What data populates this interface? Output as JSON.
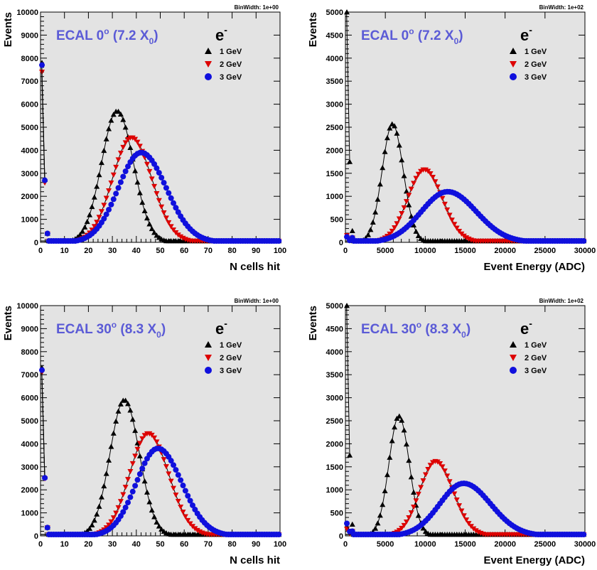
{
  "chart_data": [
    {
      "type": "line",
      "binwidth": "BinWidth: 1e+00",
      "title": {
        "pre": "ECAL 0",
        "sup": "o",
        "mid": " (7.2 X",
        "sub": "0",
        "post": ")"
      },
      "particle": {
        "base": "e",
        "sup": "-"
      },
      "xlabel": "N cells hit",
      "ylabel": "Events",
      "xlim": [
        0,
        100
      ],
      "ylim": [
        0,
        10000
      ],
      "xticks": [
        "0",
        "10",
        "20",
        "30",
        "40",
        "50",
        "60",
        "70",
        "80",
        "90",
        "100"
      ],
      "yticks": [
        "0",
        "1000",
        "2000",
        "3000",
        "4000",
        "5000",
        "6000",
        "7000",
        "8000",
        "9000",
        "10000"
      ],
      "legend_position": "top-right",
      "series": [
        {
          "name": "1 GeV",
          "color": "#000000",
          "marker": "triangle-up",
          "spike": 7800,
          "peak": 32,
          "height": 5700,
          "sigma_left": 6.5,
          "sigma_right": 6.8
        },
        {
          "name": "2 GeV",
          "color": "#dd0000",
          "marker": "triangle-down",
          "spike": 7400,
          "peak": 38,
          "height": 4550,
          "sigma_left": 8.0,
          "sigma_right": 8.5
        },
        {
          "name": "3 GeV",
          "color": "#1010dd",
          "marker": "circle",
          "spike": 7700,
          "peak": 42,
          "height": 3900,
          "sigma_left": 9.5,
          "sigma_right": 10.5
        }
      ]
    },
    {
      "type": "line",
      "binwidth": "BinWidth: 1e+02",
      "title": {
        "pre": "ECAL 0",
        "sup": "o",
        "mid": " (7.2 X",
        "sub": "0",
        "post": ")"
      },
      "particle": {
        "base": "e",
        "sup": "-"
      },
      "xlabel": "Event Energy (ADC)",
      "ylabel": "Events",
      "xlim": [
        0,
        30000
      ],
      "ylim": [
        0,
        5000
      ],
      "xticks": [
        "0",
        "5000",
        "10000",
        "15000",
        "20000",
        "25000",
        "30000"
      ],
      "yticks": [
        "0",
        "500",
        "1000",
        "1500",
        "2000",
        "2500",
        "3000",
        "3500",
        "4000",
        "4500",
        "5000"
      ],
      "legend_position": "top-right",
      "series": [
        {
          "name": "1 GeV",
          "color": "#000000",
          "marker": "triangle-up",
          "spike": 5000,
          "peak": 5900,
          "height": 2570,
          "sigma_left": 1300,
          "sigma_right": 1350
        },
        {
          "name": "2 GeV",
          "color": "#dd0000",
          "marker": "triangle-down",
          "spike": 150,
          "peak": 9900,
          "height": 1580,
          "sigma_left": 2100,
          "sigma_right": 2250
        },
        {
          "name": "3 GeV",
          "color": "#1010dd",
          "marker": "circle",
          "spike": 120,
          "peak": 12800,
          "height": 1100,
          "sigma_left": 3300,
          "sigma_right": 3600
        }
      ]
    },
    {
      "type": "line",
      "binwidth": "BinWidth: 1e+00",
      "title": {
        "pre": "ECAL 30",
        "sup": "o",
        "mid": " (8.3 X",
        "sub": "0",
        "post": ")"
      },
      "particle": {
        "base": "e",
        "sup": "-"
      },
      "xlabel": "N cells hit",
      "ylabel": "Events",
      "xlim": [
        0,
        100
      ],
      "ylim": [
        0,
        10000
      ],
      "xticks": [
        "0",
        "10",
        "20",
        "30",
        "40",
        "50",
        "60",
        "70",
        "80",
        "90",
        "100"
      ],
      "yticks": [
        "0",
        "1000",
        "2000",
        "3000",
        "4000",
        "5000",
        "6000",
        "7000",
        "8000",
        "9000",
        "10000"
      ],
      "legend_position": "top-right",
      "series": [
        {
          "name": "1 GeV",
          "color": "#000000",
          "marker": "triangle-up",
          "spike": 7300,
          "peak": 35,
          "height": 5900,
          "sigma_left": 6.0,
          "sigma_right": 6.3
        },
        {
          "name": "2 GeV",
          "color": "#dd0000",
          "marker": "triangle-down",
          "spike": 7100,
          "peak": 45,
          "height": 4450,
          "sigma_left": 7.8,
          "sigma_right": 8.5
        },
        {
          "name": "3 GeV",
          "color": "#1010dd",
          "marker": "circle",
          "spike": 7200,
          "peak": 49,
          "height": 3800,
          "sigma_left": 9.0,
          "sigma_right": 10.0
        }
      ]
    },
    {
      "type": "line",
      "binwidth": "BinWidth: 1e+02",
      "title": {
        "pre": "ECAL 30",
        "sup": "o",
        "mid": " (8.3 X",
        "sub": "0",
        "post": ")"
      },
      "particle": {
        "base": "e",
        "sup": "-"
      },
      "xlabel": "Event Energy (ADC)",
      "ylabel": "Events",
      "xlim": [
        0,
        30000
      ],
      "ylim": [
        0,
        5000
      ],
      "xticks": [
        "0",
        "5000",
        "10000",
        "15000",
        "20000",
        "25000",
        "30000"
      ],
      "yticks": [
        "0",
        "500",
        "1000",
        "1500",
        "2000",
        "2500",
        "3000",
        "3500",
        "4000",
        "4500",
        "5000"
      ],
      "legend_position": "top-right",
      "series": [
        {
          "name": "1 GeV",
          "color": "#000000",
          "marker": "triangle-up",
          "spike": 5000,
          "peak": 6700,
          "height": 2600,
          "sigma_left": 1250,
          "sigma_right": 1300
        },
        {
          "name": "2 GeV",
          "color": "#dd0000",
          "marker": "triangle-down",
          "spike": 150,
          "peak": 11300,
          "height": 1620,
          "sigma_left": 2000,
          "sigma_right": 2200
        },
        {
          "name": "3 GeV",
          "color": "#1010dd",
          "marker": "circle",
          "spike": 270,
          "peak": 14800,
          "height": 1140,
          "sigma_left": 3000,
          "sigma_right": 3400
        }
      ]
    }
  ]
}
